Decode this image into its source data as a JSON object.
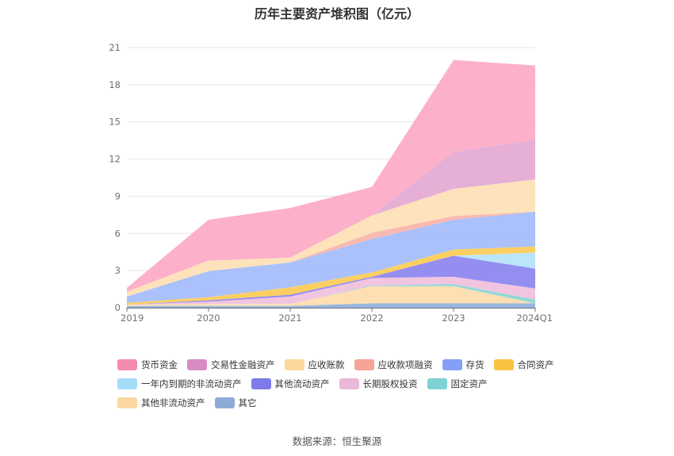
{
  "title": "历年主要资产堆积图（亿元）",
  "source": "数据来源：恒生聚源",
  "chart_data": {
    "type": "area",
    "stacked": true,
    "title": "历年主要资产堆积图（亿元）",
    "xlabel": "",
    "ylabel": "",
    "x": [
      "2019",
      "2020",
      "2021",
      "2022",
      "2023",
      "2024Q1"
    ],
    "ylim": [
      0,
      21
    ],
    "yticks": [
      0,
      3,
      6,
      9,
      12,
      15,
      18,
      21
    ],
    "grid": true,
    "legend_position": "bottom",
    "series": [
      {
        "name": "其它",
        "color": "#8fb0dd",
        "values": [
          0.15,
          0.15,
          0.15,
          0.35,
          0.35,
          0.35
        ]
      },
      {
        "name": "其他非流动资产",
        "color": "#fddcad",
        "values": [
          0.1,
          0.15,
          0.15,
          1.4,
          1.4,
          0.0
        ]
      },
      {
        "name": "固定资产",
        "color": "#86d6d6",
        "values": [
          0.0,
          0.0,
          0.0,
          0.05,
          0.15,
          0.3
        ]
      },
      {
        "name": "长期股权投资",
        "color": "#f0c0dc",
        "values": [
          0.0,
          0.2,
          0.6,
          0.6,
          0.6,
          0.9
        ]
      },
      {
        "name": "其他流动资产",
        "color": "#8b84f0",
        "values": [
          0.0,
          0.1,
          0.15,
          0.1,
          1.7,
          1.6
        ]
      },
      {
        "name": "一年内到期的非流动资产",
        "color": "#b5e3fa",
        "values": [
          0.0,
          0.0,
          0.0,
          0.0,
          0.0,
          1.3
        ]
      },
      {
        "name": "合同资产",
        "color": "#fccb56",
        "values": [
          0.15,
          0.25,
          0.6,
          0.35,
          0.5,
          0.5
        ]
      },
      {
        "name": "存货",
        "color": "#a3bcfb",
        "values": [
          0.5,
          2.1,
          2.0,
          2.7,
          2.4,
          2.8
        ]
      },
      {
        "name": "应收款项融资",
        "color": "#f9b3aa",
        "values": [
          0.0,
          0.0,
          0.0,
          0.5,
          0.3,
          0.0
        ]
      },
      {
        "name": "应收账款",
        "color": "#fde0b5",
        "values": [
          0.4,
          0.85,
          0.4,
          1.4,
          2.2,
          2.6
        ]
      },
      {
        "name": "交易性金融资产",
        "color": "#e4a8d3",
        "values": [
          0.0,
          0.0,
          0.0,
          0.0,
          3.0,
          3.2
        ]
      },
      {
        "name": "货币资金",
        "color": "#fda9c6",
        "values": [
          0.3,
          3.3,
          4.0,
          2.3,
          7.4,
          6.0
        ]
      }
    ]
  },
  "legend": {
    "rows": [
      [
        {
          "label": "货币资金",
          "color": "#f38bb0"
        },
        {
          "label": "交易性金融资产",
          "color": "#d88bc4"
        },
        {
          "label": "应收账款",
          "color": "#fcd89c"
        },
        {
          "label": "应收款项融资",
          "color": "#f6a398"
        },
        {
          "label": "存货",
          "color": "#849ff5"
        },
        {
          "label": "合同资产",
          "color": "#fbc142"
        }
      ],
      [
        {
          "label": "一年内到期的非流动资产",
          "color": "#a7dcf8"
        },
        {
          "label": "其他流动资产",
          "color": "#7d7ae9"
        },
        {
          "label": "长期股权投资",
          "color": "#e9b8d9"
        },
        {
          "label": "固定资产",
          "color": "#7dd3d3"
        }
      ],
      [
        {
          "label": "其他非流动资产",
          "color": "#fcd7a1"
        },
        {
          "label": "其它",
          "color": "#8eabd8"
        }
      ]
    ]
  }
}
